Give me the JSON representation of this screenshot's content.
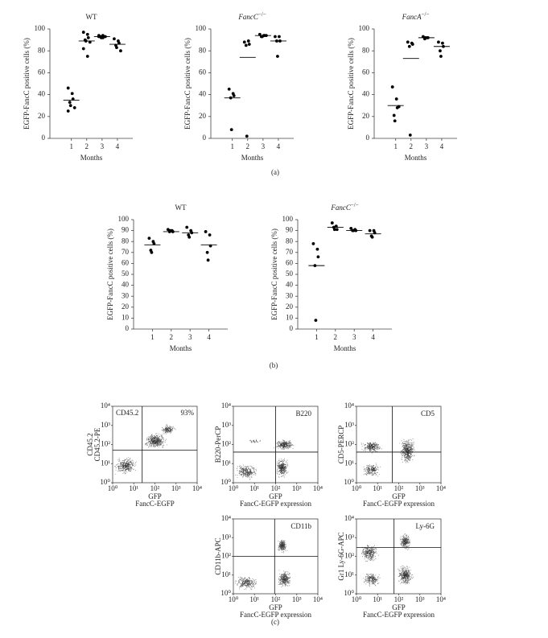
{
  "chart_data": [
    {
      "type": "dot",
      "title": "WT",
      "ylabel": "EGFP-FancC positive cells (%)",
      "xlabel": "Months",
      "x": [
        1,
        2,
        3,
        4
      ],
      "xticks": [
        1,
        2,
        3,
        4
      ],
      "xlim": [
        -0.4,
        5
      ],
      "ylim": [
        0,
        100
      ],
      "yticks": [
        0,
        20,
        40,
        60,
        80,
        100
      ],
      "values": [
        [
          46,
          41,
          36,
          33,
          30,
          28,
          25
        ],
        [
          97,
          95,
          92,
          90,
          89,
          88,
          82,
          75
        ],
        [
          94,
          94,
          93,
          93,
          92,
          93,
          93,
          92
        ],
        [
          91,
          89,
          87,
          85,
          83,
          80
        ]
      ],
      "means": [
        35,
        89,
        93,
        86
      ],
      "color": "#000000"
    },
    {
      "type": "dot",
      "title": "FancC",
      "title_superscript": "−/−",
      "ylabel": "EGFP-FancC positive cells (%)",
      "xlabel": "Months",
      "x": [
        1,
        2,
        3,
        4
      ],
      "xticks": [
        1,
        2,
        3,
        4
      ],
      "xlim": [
        -0.4,
        5
      ],
      "ylim": [
        0,
        100
      ],
      "yticks": [
        0,
        20,
        40,
        60,
        80,
        100
      ],
      "values": [
        [
          45,
          41,
          39,
          37,
          8
        ],
        [
          88,
          89,
          86,
          85,
          2
        ],
        [
          95,
          94,
          94,
          93,
          93,
          94
        ],
        [
          93,
          93,
          89,
          89,
          75
        ]
      ],
      "means": [
        37,
        74,
        94,
        89
      ],
      "color": "#000000"
    },
    {
      "type": "dot",
      "title": "FancA",
      "title_superscript": "−/−",
      "ylabel": "EGFP-FancC positive cells (%)",
      "xlabel": "Months",
      "x": [
        1,
        2,
        3,
        4
      ],
      "xticks": [
        1,
        2,
        3,
        4
      ],
      "xlim": [
        -0.4,
        5
      ],
      "ylim": [
        0,
        100
      ],
      "yticks": [
        0,
        20,
        40,
        60,
        80,
        100
      ],
      "values": [
        [
          47,
          36,
          28,
          21,
          16,
          29
        ],
        [
          88,
          87,
          86,
          84,
          3
        ],
        [
          93,
          92,
          92,
          91,
          92
        ],
        [
          88,
          87,
          84,
          80,
          75
        ]
      ],
      "means": [
        30,
        73,
        92,
        84
      ],
      "color": "#000000"
    },
    {
      "type": "dot",
      "title": "WT",
      "ylabel": "EGFP-FancC positive cells (%)",
      "xlabel": "Months",
      "x": [
        1,
        2,
        3,
        4
      ],
      "xticks": [
        1,
        2,
        3,
        4
      ],
      "xlim": [
        0,
        5
      ],
      "ylim": [
        0,
        100
      ],
      "yticks": [
        0,
        10,
        20,
        30,
        40,
        50,
        60,
        70,
        80,
        90,
        100
      ],
      "values": [
        [
          83,
          80,
          78,
          72,
          70
        ],
        [
          91,
          90,
          89,
          89,
          90
        ],
        [
          93,
          90,
          88,
          86,
          84
        ],
        [
          89,
          86,
          76,
          70,
          63
        ]
      ],
      "means": [
        77,
        89,
        88,
        77
      ],
      "color": "#000000"
    },
    {
      "type": "dot",
      "title": "FancC",
      "title_superscript": "−/−",
      "ylabel": "EGFP-FancC positive cells (%)",
      "xlabel": "Months",
      "x": [
        1,
        2,
        3,
        4
      ],
      "xticks": [
        1,
        2,
        3,
        4
      ],
      "xlim": [
        0,
        5
      ],
      "ylim": [
        0,
        100
      ],
      "yticks": [
        0,
        10,
        20,
        30,
        40,
        50,
        60,
        70,
        80,
        90,
        100
      ],
      "values": [
        [
          78,
          73,
          66,
          58,
          8
        ],
        [
          97,
          94,
          91,
          93,
          91
        ],
        [
          92,
          91,
          90,
          90,
          90
        ],
        [
          90,
          90,
          88,
          85,
          84
        ]
      ],
      "means": [
        58,
        93,
        90,
        87
      ],
      "color": "#000000"
    },
    {
      "type": "flow",
      "gate_label": "CD45.2",
      "percent_label": "93%",
      "ylabel": [
        "CD45.2",
        "CD45.2-PE"
      ],
      "xlabel": [
        "GFP",
        "FancC-EGFP"
      ],
      "log_scale": true,
      "xlim": [
        1,
        10000
      ],
      "ylim": [
        1,
        10000
      ],
      "xticks": [
        {
          "value": 1,
          "label": "10⁰"
        },
        {
          "value": 10,
          "label": "10¹"
        },
        {
          "value": 100,
          "label": "10²"
        },
        {
          "value": 1000,
          "label": "10³"
        },
        {
          "value": 10000,
          "label": "10⁴"
        }
      ],
      "yticks": [
        {
          "value": 1,
          "label": "10⁰"
        },
        {
          "value": 10,
          "label": "10¹"
        },
        {
          "value": 100,
          "label": "10²"
        },
        {
          "value": 1000,
          "label": "10³"
        },
        {
          "value": 10000,
          "label": "10⁴"
        }
      ],
      "quadrant": {
        "x": 25,
        "y": 50
      }
    },
    {
      "type": "flow",
      "gate_label": "B220",
      "ylabel": [
        "B220-PerCP"
      ],
      "xlabel": [
        "GFP",
        "FancC-EGFP expression"
      ],
      "log_scale": true,
      "xlim": [
        1,
        10000
      ],
      "ylim": [
        1,
        10000
      ],
      "xticks": [
        {
          "value": 1,
          "label": "10⁰"
        },
        {
          "value": 10,
          "label": "10¹"
        },
        {
          "value": 100,
          "label": "10²"
        },
        {
          "value": 1000,
          "label": "10³"
        },
        {
          "value": 10000,
          "label": "10⁴"
        }
      ],
      "yticks": [
        {
          "value": 1,
          "label": "10⁰"
        },
        {
          "value": 10,
          "label": "10¹"
        },
        {
          "value": 100,
          "label": "10²"
        },
        {
          "value": 1000,
          "label": "10³"
        },
        {
          "value": 10000,
          "label": "10⁴"
        }
      ],
      "quadrant": {
        "x": 100,
        "y": 40
      }
    },
    {
      "type": "flow",
      "gate_label": "CD5",
      "ylabel": [
        "CD5-PERCP"
      ],
      "xlabel": [
        "GFP",
        "FancC-EGFP expression"
      ],
      "log_scale": true,
      "xlim": [
        1,
        10000
      ],
      "ylim": [
        1,
        10000
      ],
      "xticks": [
        {
          "value": 1,
          "label": "10⁰"
        },
        {
          "value": 10,
          "label": "10¹"
        },
        {
          "value": 100,
          "label": "10²"
        },
        {
          "value": 1000,
          "label": "10³"
        },
        {
          "value": 10000,
          "label": "10⁴"
        }
      ],
      "yticks": [
        {
          "value": 1,
          "label": "10⁰"
        },
        {
          "value": 10,
          "label": "10¹"
        },
        {
          "value": 100,
          "label": "10²"
        },
        {
          "value": 1000,
          "label": "10³"
        },
        {
          "value": 10000,
          "label": "10⁴"
        }
      ],
      "quadrant": {
        "x": 50,
        "y": 40
      }
    },
    {
      "type": "flow",
      "gate_label": "CD11b",
      "ylabel": [
        "CD11b-APC"
      ],
      "xlabel": [
        "GFP",
        "FancC-EGFP expression"
      ],
      "log_scale": true,
      "xlim": [
        1,
        10000
      ],
      "ylim": [
        1,
        10000
      ],
      "xticks": [
        {
          "value": 1,
          "label": "10⁰"
        },
        {
          "value": 10,
          "label": "10¹"
        },
        {
          "value": 100,
          "label": "10²"
        },
        {
          "value": 1000,
          "label": "10³"
        },
        {
          "value": 10000,
          "label": "10⁴"
        }
      ],
      "yticks": [
        {
          "value": 1,
          "label": "10⁰"
        },
        {
          "value": 10,
          "label": "10¹"
        },
        {
          "value": 100,
          "label": "10²"
        },
        {
          "value": 1000,
          "label": "10³"
        },
        {
          "value": 10000,
          "label": "10⁴"
        }
      ],
      "quadrant": {
        "x": 90,
        "y": 100
      }
    },
    {
      "type": "flow",
      "gate_label": "Ly-6G",
      "ylabel": [
        "Gr1 Ly-6G-APC"
      ],
      "xlabel": [
        "GFP",
        "FancC-EGFP expression"
      ],
      "log_scale": true,
      "xlim": [
        1,
        10000
      ],
      "ylim": [
        1,
        10000
      ],
      "xticks": [
        {
          "value": 1,
          "label": "10⁰"
        },
        {
          "value": 10,
          "label": "10¹"
        },
        {
          "value": 100,
          "label": "10²"
        },
        {
          "value": 1000,
          "label": "10³"
        },
        {
          "value": 10000,
          "label": "10⁴"
        }
      ],
      "yticks": [
        {
          "value": 1,
          "label": "10⁰"
        },
        {
          "value": 10,
          "label": "10¹"
        },
        {
          "value": 100,
          "label": "10²"
        },
        {
          "value": 1000,
          "label": "10³"
        },
        {
          "value": 10000,
          "label": "10⁴"
        }
      ],
      "quadrant": {
        "x": 60,
        "y": 300
      }
    }
  ],
  "panel_labels": [
    "(a)",
    "(b)",
    "(c)"
  ]
}
